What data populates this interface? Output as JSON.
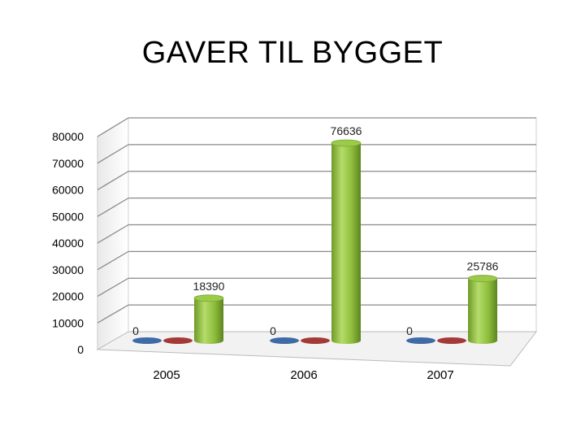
{
  "title": "GAVER TIL BYGGET",
  "chart_data": {
    "type": "bar",
    "style": "3d-cylinder",
    "categories": [
      "2005",
      "2006",
      "2007"
    ],
    "series": [
      {
        "values": [
          0,
          0,
          0
        ],
        "color": "#3e6aa6",
        "show_labels": true
      },
      {
        "values": [
          0,
          0,
          0
        ],
        "color": "#a33a37",
        "show_labels": false
      },
      {
        "values": [
          18390,
          76636,
          25786
        ],
        "color": "#8dbd3c",
        "show_labels": true
      }
    ],
    "yticks": [
      "0",
      "10000",
      "20000",
      "30000",
      "40000",
      "50000",
      "60000",
      "70000",
      "80000"
    ],
    "ylim": [
      0,
      80000
    ],
    "grid": true,
    "legend": "none"
  }
}
